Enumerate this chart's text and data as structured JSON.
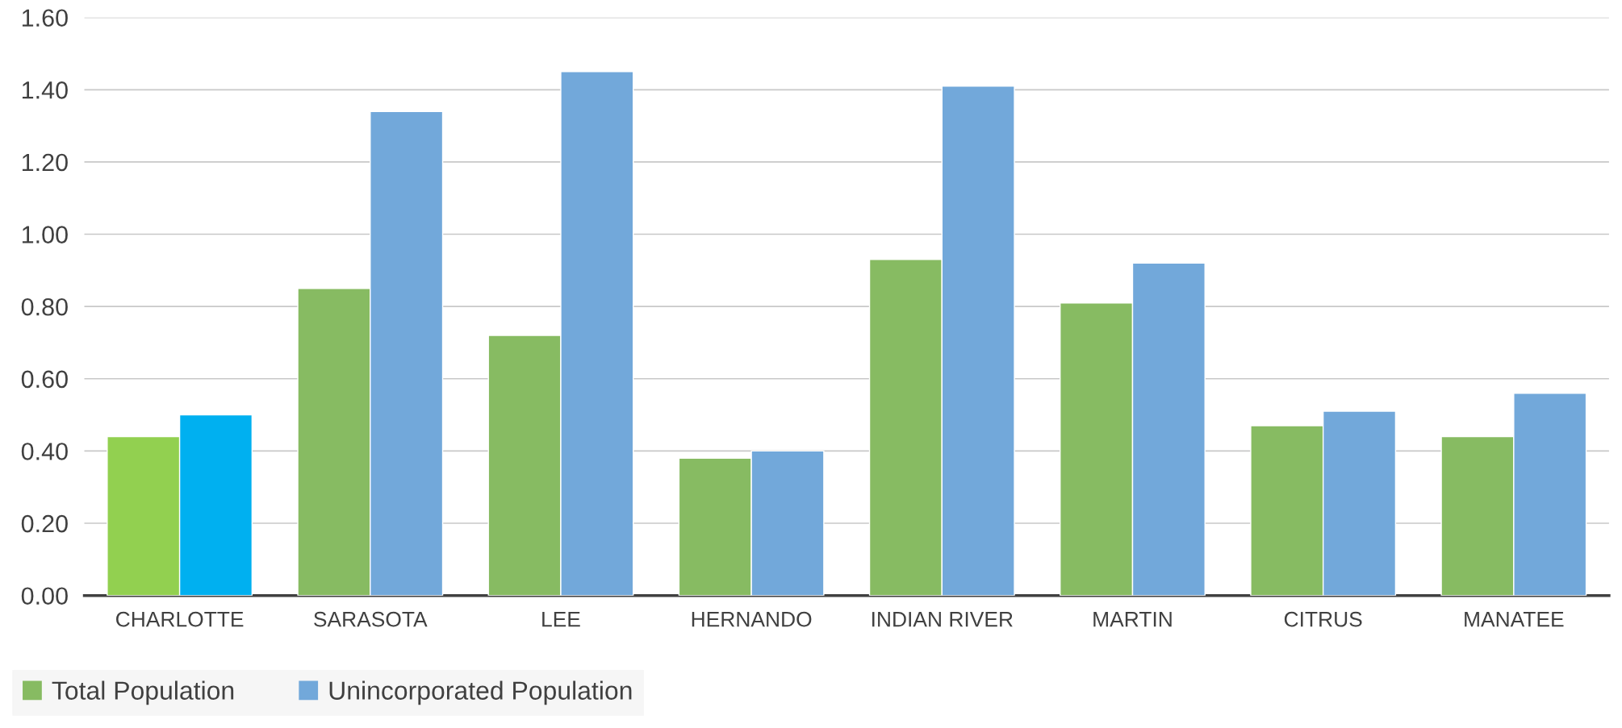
{
  "chart_data": {
    "type": "bar",
    "categories": [
      "CHARLOTTE",
      "SARASOTA",
      "LEE",
      "HERNANDO",
      "INDIAN RIVER",
      "MARTIN",
      "CITRUS",
      "MANATEE"
    ],
    "series": [
      {
        "name": "Total Population",
        "color": "#87bb62",
        "colors": [
          "#92d050",
          "#87bb62",
          "#87bb62",
          "#87bb62",
          "#87bb62",
          "#87bb62",
          "#87bb62",
          "#87bb62"
        ],
        "values": [
          0.44,
          0.85,
          0.72,
          0.38,
          0.93,
          0.81,
          0.47,
          0.44
        ]
      },
      {
        "name": "Unincorporated Population",
        "color": "#72a8da",
        "colors": [
          "#00b0f0",
          "#72a8da",
          "#72a8da",
          "#72a8da",
          "#72a8da",
          "#72a8da",
          "#72a8da",
          "#72a8da"
        ],
        "values": [
          0.5,
          1.34,
          1.45,
          0.4,
          1.41,
          0.92,
          0.51,
          0.56
        ]
      }
    ],
    "ylim": [
      0,
      1.6
    ],
    "yticks": [
      {
        "value": 0,
        "label": "0.00"
      },
      {
        "value": 0.2,
        "label": "0.20"
      },
      {
        "value": 0.4,
        "label": "0.40"
      },
      {
        "value": 0.6,
        "label": "0.60"
      },
      {
        "value": 0.8,
        "label": "0.80"
      },
      {
        "value": 1.0,
        "label": "1.00"
      },
      {
        "value": 1.2,
        "label": "1.20"
      },
      {
        "value": 1.4,
        "label": "1.40"
      },
      {
        "value": 1.6,
        "label": "1.60"
      }
    ],
    "grid": "y",
    "legend": "bottom left"
  }
}
